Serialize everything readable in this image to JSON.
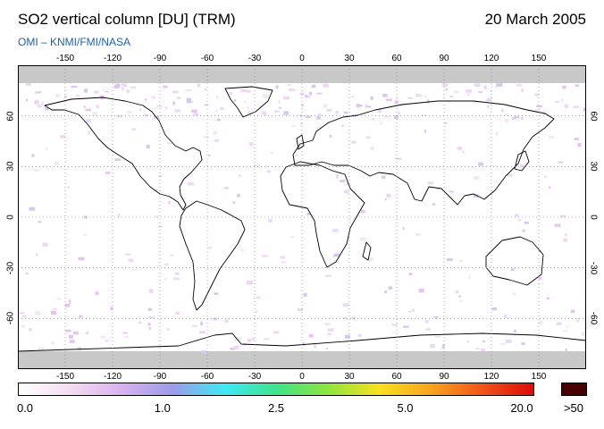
{
  "header": {
    "title": "SO2 vertical column [DU] (TRM)",
    "date": "20 March 2005",
    "credit": "OMI  –  KNMI/FMI/NASA"
  },
  "map": {
    "projection": "equirectangular",
    "lon_range": [
      -180,
      180
    ],
    "lat_range": [
      -90,
      90
    ],
    "grid": true,
    "lon_ticks": [
      "-150",
      "-120",
      "-90",
      "-60",
      "-30",
      "0",
      "30",
      "60",
      "90",
      "120",
      "150"
    ],
    "lat_ticks": [
      "60",
      "30",
      "0",
      "-30",
      "-60"
    ],
    "no_data_color": "#c8c8c8",
    "coastline_color": "#000000"
  },
  "colorbar": {
    "labels": [
      "0.0",
      "1.0",
      "2.5",
      "5.0",
      "20.0"
    ],
    "max_label": ">50",
    "max_color": "#4a0000",
    "colors": [
      "#ffffff",
      "#f4dcf2",
      "#d9b2ee",
      "#9c9cea",
      "#3fe8f5",
      "#3fe48a",
      "#8ee53f",
      "#f7e11f",
      "#f7a51f",
      "#f2541a",
      "#dc0c0c"
    ]
  }
}
